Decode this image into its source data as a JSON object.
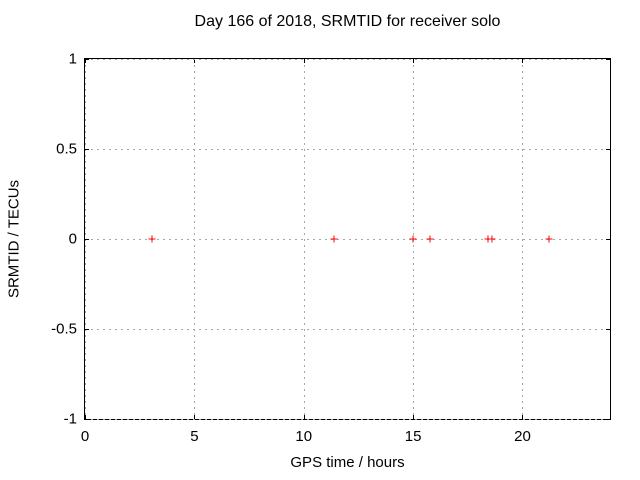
{
  "chart_data": {
    "type": "scatter",
    "title": "Day 166 of 2018, SRMTID for receiver solo",
    "xlabel": "GPS time / hours",
    "ylabel": "SRMTID / TECUs",
    "xlim": [
      0,
      24
    ],
    "ylim": [
      -1,
      1
    ],
    "xticks": [
      0,
      5,
      10,
      15,
      20
    ],
    "yticks": [
      1,
      0.5,
      0,
      -0.5,
      -1
    ],
    "grid": true,
    "grid_style": "dashed-gray",
    "legend": "none",
    "series": [
      {
        "name": "SRMTID",
        "marker": "plus",
        "color": "#ff0000",
        "points": [
          {
            "x": 3.05,
            "y": 0
          },
          {
            "x": 11.4,
            "y": 0
          },
          {
            "x": 15.0,
            "y": 0
          },
          {
            "x": 15.75,
            "y": 0
          },
          {
            "x": 18.4,
            "y": 0
          },
          {
            "x": 18.6,
            "y": 0
          },
          {
            "x": 21.2,
            "y": 0
          }
        ]
      }
    ]
  }
}
